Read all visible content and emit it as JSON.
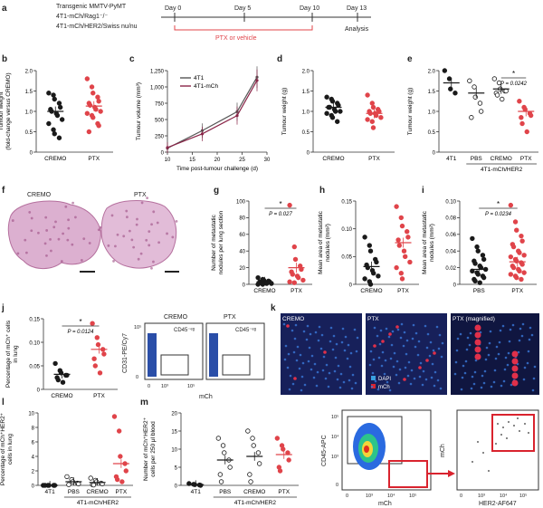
{
  "panel_labels": {
    "a": "a",
    "b": "b",
    "c": "c",
    "d": "d",
    "e": "e",
    "f": "f",
    "g": "g",
    "h": "h",
    "i": "i",
    "j": "j",
    "k": "k",
    "l": "l",
    "m": "m"
  },
  "timeline": {
    "lines": [
      "Transgenic MMTV-PyMT",
      "4T1-mCh/Rag1⁻/⁻",
      "4T1-mCh/HER2/Swiss nu/nu"
    ],
    "days": [
      "Day 0",
      "Day 5",
      "Day 10",
      "Day 13"
    ],
    "treatment": "PTX or vehicle",
    "end": "Analysis"
  },
  "colors": {
    "red": "#e0444a",
    "dark": "#1a1a1a",
    "mchRed": "#d9232e",
    "flowBlue": "#2a4ea8",
    "he": "#c77fb0"
  },
  "panel_b": {
    "ylabel": "Tumour weight",
    "ylabel2": "(fold-change versus CREMO)",
    "categories": [
      "CREMO",
      "PTX"
    ],
    "yticks": [
      "0",
      "0.5",
      "1.0",
      "1.5",
      "2.0"
    ]
  },
  "panel_c": {
    "ylabel": "Tumour volume (mm³)",
    "xlabel": "Time post-tumour challenge (d)",
    "legend": [
      "4T1",
      "4T1-mCh"
    ],
    "xticks": [
      "10",
      "15",
      "20",
      "25",
      "30"
    ],
    "yticks": [
      "0",
      "250",
      "500",
      "750",
      "1,000",
      "1,250"
    ]
  },
  "panel_d": {
    "ylabel": "Tumour weight (g)",
    "categories": [
      "CREMO",
      "PTX"
    ],
    "yticks": [
      "0",
      "0.5",
      "1.0",
      "1.5",
      "2.0"
    ]
  },
  "panel_e": {
    "ylabel": "Tumour weight (g)",
    "categories": [
      "4T1",
      "PBS",
      "CREMO",
      "PTX"
    ],
    "group": "4T1-mCh/HER2",
    "pvalue": "P = 0.0242",
    "star": "*",
    "yticks": [
      "0",
      "0.5",
      "1.0",
      "1.5",
      "2.0"
    ]
  },
  "panel_f": {
    "labels": [
      "CREMO",
      "PTX"
    ]
  },
  "panel_g": {
    "ylabel": "Number of metastatic",
    "ylabel2": "nodules per lung section",
    "categories": [
      "CREMO",
      "PTX"
    ],
    "pvalue": "P = 0.027",
    "star": "*",
    "yticks": [
      "0",
      "20",
      "40",
      "60",
      "80",
      "100"
    ]
  },
  "panel_h": {
    "ylabel": "Mean area of metastatic",
    "ylabel2": "nodules (mm²)",
    "categories": [
      "CREMO",
      "PTX"
    ],
    "yticks": [
      "0",
      "0.05",
      "0.10",
      "0.15"
    ]
  },
  "panel_i": {
    "ylabel": "Mean area of metastatic",
    "ylabel2": "nodules (mm²)",
    "categories": [
      "PBS",
      "PTX"
    ],
    "pvalue": "P = 0.0234",
    "star": "*",
    "yticks": [
      "0",
      "0.02",
      "0.04",
      "0.06",
      "0.08",
      "0.10"
    ]
  },
  "panel_j": {
    "ylabel": "Percentage of mCh⁺ cells",
    "ylabel2": "in lung",
    "categories": [
      "CREMO",
      "PTX"
    ],
    "pvalue": "P = 0.0124",
    "star": "*",
    "yticks": [
      "0",
      "0.05",
      "0.10",
      "0.15"
    ]
  },
  "panel_j_flow": {
    "titles": [
      "CREMO",
      "PTX"
    ],
    "gate": "CD45⁻ᵉᵍ",
    "xlabel": "mCh",
    "ylabel": "CD31-PE/Cy7",
    "ticks": [
      "0",
      "10³",
      "10⁴",
      "10⁵"
    ]
  },
  "panel_k": {
    "labels": [
      "CREMO",
      "PTX",
      "PTX (magnified)"
    ],
    "legend": [
      "DAPI",
      "mCh"
    ]
  },
  "panel_l": {
    "ylabel": "Percentage of mCh⁺HER2⁺",
    "ylabel2": "cells in lung",
    "categories": [
      "4T1",
      "PBS",
      "CREMO",
      "PTX"
    ],
    "group": "4T1-mCh/HER2",
    "yticks": [
      "0",
      "2",
      "4",
      "6",
      "8",
      "10"
    ]
  },
  "panel_m": {
    "ylabel": "Number of mCh⁺HER2⁺",
    "ylabel2": "cells per 250 μl blood",
    "categories": [
      "4T1",
      "PBS",
      "CREMO",
      "PTX"
    ],
    "group": "4T1-mCh/HER2",
    "yticks": [
      "0",
      "5",
      "10",
      "15",
      "20"
    ]
  },
  "panel_m_flow": {
    "ylabel1": "CD45-APC",
    "xlabel1": "mCh",
    "ylabel2": "mCh",
    "xlabel2": "HER2-AF647",
    "ticks": [
      "0",
      "10³",
      "10⁴",
      "10⁵"
    ]
  },
  "chart_data": [
    {
      "type": "scatter",
      "panel": "b",
      "categories": [
        "CREMO",
        "PTX"
      ],
      "series": [
        {
          "values": [
            [
              1.45,
              1.4,
              1.3,
              1.2,
              1.1,
              1.05,
              1.0,
              0.95,
              0.9,
              0.8,
              0.7,
              0.55,
              0.45,
              0.35
            ],
            [
              1.8,
              1.6,
              1.45,
              1.35,
              1.25,
              1.2,
              1.15,
              1.1,
              1.05,
              1.0,
              0.95,
              0.9,
              0.85,
              0.7,
              0.65,
              0.5
            ]
          ]
        }
      ],
      "means": [
        1.0,
        1.13
      ],
      "ylim": [
        0,
        2
      ]
    },
    {
      "type": "line",
      "panel": "c",
      "x": [
        10,
        17,
        24,
        28
      ],
      "series": [
        {
          "name": "4T1",
          "values": [
            60,
            330,
            620,
            1150
          ]
        },
        {
          "name": "4T1-mCh",
          "values": [
            70,
            280,
            560,
            1100
          ]
        }
      ],
      "ylim": [
        0,
        1250
      ],
      "xlim": [
        10,
        30
      ]
    },
    {
      "type": "scatter",
      "panel": "d",
      "categories": [
        "CREMO",
        "PTX"
      ],
      "series": [
        {
          "values": [
            [
              1.35,
              1.3,
              1.25,
              1.2,
              1.15,
              1.1,
              1.1,
              1.05,
              1.0,
              1.0,
              0.95,
              0.9,
              0.85,
              0.75
            ],
            [
              1.4,
              1.2,
              1.1,
              1.05,
              1.0,
              1.0,
              0.95,
              0.95,
              0.9,
              0.85,
              0.8,
              0.75,
              0.6
            ]
          ]
        }
      ],
      "means": [
        1.1,
        0.95
      ],
      "ylim": [
        0,
        2
      ]
    },
    {
      "type": "scatter",
      "panel": "e",
      "categories": [
        "4T1",
        "PBS",
        "CREMO",
        "PTX"
      ],
      "series": [
        {
          "values": [
            [
              2.0,
              1.8,
              1.55,
              1.45
            ],
            [
              1.75,
              1.6,
              1.35,
              1.2,
              1.0,
              0.85
            ],
            [
              1.8,
              1.7,
              1.55,
              1.5,
              1.5,
              1.45,
              1.4,
              1.3
            ],
            [
              1.25,
              1.1,
              1.05,
              0.95,
              0.9,
              0.85,
              0.7,
              0.5
            ]
          ]
        }
      ],
      "means": [
        1.7,
        1.45,
        1.55,
        1.0
      ],
      "ylim": [
        0,
        2
      ]
    },
    {
      "type": "scatter",
      "panel": "g",
      "categories": [
        "CREMO",
        "PTX"
      ],
      "series": [
        {
          "values": [
            [
              8,
              6,
              5,
              4,
              3,
              3,
              2,
              2,
              1,
              1,
              0,
              0
            ],
            [
              95,
              45,
              30,
              22,
              18,
              15,
              12,
              10,
              8,
              5,
              3,
              2
            ]
          ]
        }
      ],
      "means": [
        3,
        20
      ],
      "ylim": [
        0,
        100
      ]
    },
    {
      "type": "scatter",
      "panel": "h",
      "categories": [
        "CREMO",
        "PTX"
      ],
      "series": [
        {
          "values": [
            [
              0.085,
              0.07,
              0.06,
              0.045,
              0.04,
              0.035,
              0.03,
              0.025,
              0.02,
              0.015,
              0.01,
              0.005,
              0.0
            ],
            [
              0.14,
              0.12,
              0.105,
              0.095,
              0.085,
              0.08,
              0.07,
              0.06,
              0.05,
              0.04,
              0.03,
              0.02,
              0.01
            ]
          ]
        }
      ],
      "means": [
        0.032,
        0.075
      ],
      "ylim": [
        0,
        0.15
      ]
    },
    {
      "type": "scatter",
      "panel": "i",
      "categories": [
        "PBS",
        "PTX"
      ],
      "series": [
        {
          "values": [
            [
              0.055,
              0.045,
              0.04,
              0.035,
              0.03,
              0.028,
              0.025,
              0.022,
              0.02,
              0.018,
              0.016,
              0.014,
              0.012,
              0.01,
              0.008,
              0.006,
              0.004,
              0.002
            ],
            [
              0.095,
              0.075,
              0.065,
              0.058,
              0.052,
              0.048,
              0.045,
              0.04,
              0.038,
              0.035,
              0.033,
              0.03,
              0.028,
              0.026,
              0.024,
              0.022,
              0.02,
              0.018,
              0.016,
              0.014,
              0.012,
              0.01,
              0.008,
              0.006
            ]
          ]
        }
      ],
      "means": [
        0.018,
        0.027
      ],
      "ylim": [
        0,
        0.1
      ]
    },
    {
      "type": "scatter",
      "panel": "j",
      "categories": [
        "CREMO",
        "PTX"
      ],
      "series": [
        {
          "values": [
            [
              0.055,
              0.04,
              0.035,
              0.03,
              0.03,
              0.025,
              0.02,
              0.015
            ],
            [
              0.14,
              0.11,
              0.095,
              0.085,
              0.075,
              0.065,
              0.05,
              0.035
            ]
          ]
        }
      ],
      "means": [
        0.032,
        0.085
      ],
      "ylim": [
        0,
        0.15
      ]
    },
    {
      "type": "scatter",
      "panel": "l",
      "categories": [
        "4T1",
        "PBS",
        "CREMO",
        "PTX"
      ],
      "series": [
        {
          "values": [
            [
              0,
              0,
              0,
              0,
              0,
              0
            ],
            [
              1.2,
              0.8,
              0.5,
              0.3,
              0.2,
              0.1
            ],
            [
              1.0,
              0.7,
              0.5,
              0.3,
              0.2,
              0.1,
              0.05
            ],
            [
              9.5,
              7.5,
              4,
              3,
              2,
              1.2,
              0.8,
              0.5
            ]
          ]
        }
      ],
      "means": [
        0,
        0.5,
        0.4,
        3
      ],
      "ylim": [
        0,
        10
      ]
    },
    {
      "type": "scatter",
      "panel": "m",
      "categories": [
        "4T1",
        "PBS",
        "CREMO",
        "PTX"
      ],
      "series": [
        {
          "values": [
            [
              0.5,
              0.3,
              0.2,
              0.1,
              0.0
            ],
            [
              13,
              11,
              9,
              7,
              5,
              3,
              1
            ],
            [
              15,
              13,
              11,
              9,
              6,
              3,
              1
            ],
            [
              13,
              11,
              10,
              9,
              7,
              5,
              4
            ]
          ]
        }
      ],
      "means": [
        0.2,
        7,
        8,
        8.5
      ],
      "ylim": [
        0,
        20
      ]
    }
  ]
}
